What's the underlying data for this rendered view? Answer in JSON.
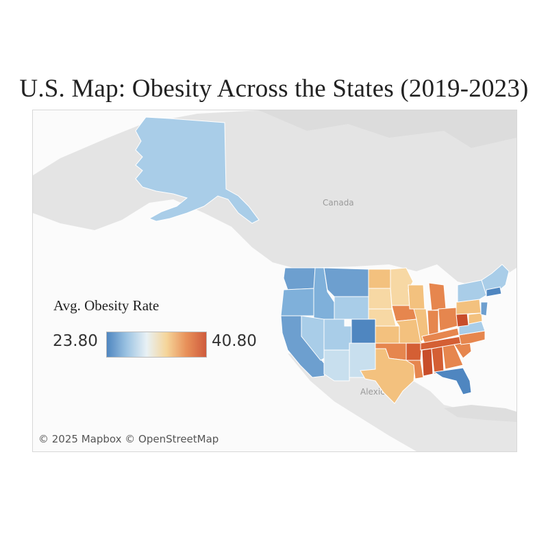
{
  "title": "U.S. Map: Obesity Across the States (2019-2023)",
  "legend": {
    "title": "Avg. Obesity Rate",
    "min_label": "23.80",
    "max_label": "40.80",
    "min_value": 23.8,
    "max_value": 40.8,
    "gradient_colors": [
      "#4f86c0",
      "#9cc3e2",
      "#e8f1f5",
      "#f5d59a",
      "#e8915a",
      "#cf5b3c"
    ]
  },
  "map_labels": {
    "canada": "Canada",
    "mexico": "Alexico"
  },
  "attribution": "© 2025 Mapbox © OpenStreetMap",
  "colors": {
    "land": "#e4e4e4",
    "water": "#fbfbfb",
    "low": "#4f86c0",
    "mid_low": "#8fbde1",
    "mid": "#cfe0ee",
    "mid_high": "#f3c17e",
    "high": "#e6864e",
    "very_high": "#d45f34"
  }
}
